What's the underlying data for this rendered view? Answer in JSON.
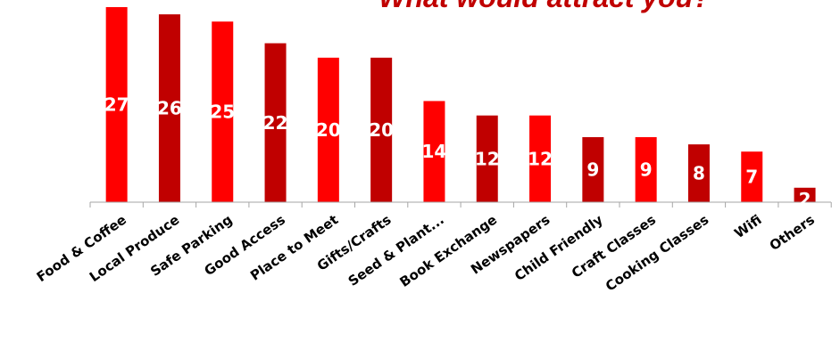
{
  "chart_data": {
    "type": "bar",
    "title": "What would attract you?",
    "xlabel": "",
    "ylabel": "",
    "categories": [
      "Food & Coffee",
      "Local Produce",
      "Safe Parking",
      "Good Access",
      "Place to Meet",
      "Gifts/Crafts",
      "Seed & Plant...",
      "Book Exchange",
      "Newspapers",
      "Child Friendly",
      "Craft Classes",
      "Cooking Classes",
      "Wifi",
      "Others"
    ],
    "values": [
      27,
      26,
      25,
      22,
      20,
      20,
      14,
      12,
      12,
      9,
      9,
      8,
      7,
      2
    ],
    "data_labels": [
      "27",
      "26",
      "25",
      "22",
      "20",
      "20",
      "14",
      "12",
      "12",
      "9",
      "9",
      "8",
      "7",
      "2"
    ],
    "ylim": [
      0,
      27
    ],
    "grid": false,
    "legend": "none",
    "colors": {
      "bright": "#ff0000",
      "dark": "#c00000",
      "pattern": [
        "bright",
        "dark",
        "bright",
        "dark",
        "bright",
        "dark",
        "bright",
        "dark",
        "bright",
        "dark",
        "bright",
        "dark",
        "bright",
        "dark"
      ],
      "title": "#c00000",
      "axis": "#a6a6a6"
    }
  }
}
